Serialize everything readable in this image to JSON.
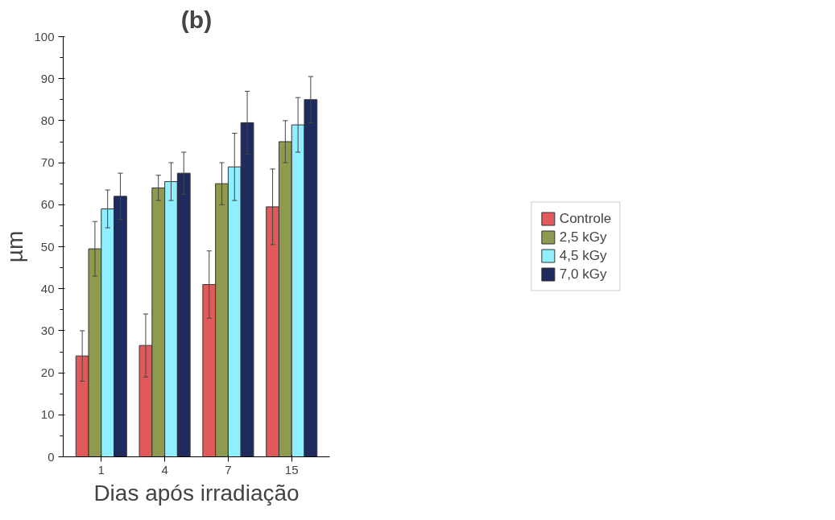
{
  "chart_data": {
    "type": "bar",
    "title": "(b)",
    "xlabel": "Dias após irradiação",
    "ylabel": "µm",
    "categories": [
      "1",
      "4",
      "7",
      "15"
    ],
    "series": [
      {
        "name": "Controle",
        "color": "#e05a5a",
        "values": [
          24,
          26.5,
          41,
          59.5
        ],
        "errors": [
          6,
          7.5,
          8,
          9
        ]
      },
      {
        "name": "2,5 kGy",
        "color": "#8f9a4f",
        "values": [
          49.5,
          64,
          65,
          75
        ],
        "errors": [
          6.5,
          3,
          5,
          5
        ]
      },
      {
        "name": "4,5 kGy",
        "color": "#8fefff",
        "values": [
          59,
          65.5,
          69,
          79
        ],
        "errors": [
          4.5,
          4.5,
          8,
          6.5
        ]
      },
      {
        "name": "7,0 kGy",
        "color": "#1f2a5e",
        "values": [
          62,
          67.5,
          79.5,
          85
        ],
        "errors": [
          5.5,
          5,
          7.5,
          5.5
        ]
      }
    ],
    "ylim": [
      0,
      100
    ],
    "yticks": [
      0,
      10,
      20,
      30,
      40,
      50,
      60,
      70,
      80,
      90,
      100
    ],
    "grid": false,
    "legend": "right"
  }
}
